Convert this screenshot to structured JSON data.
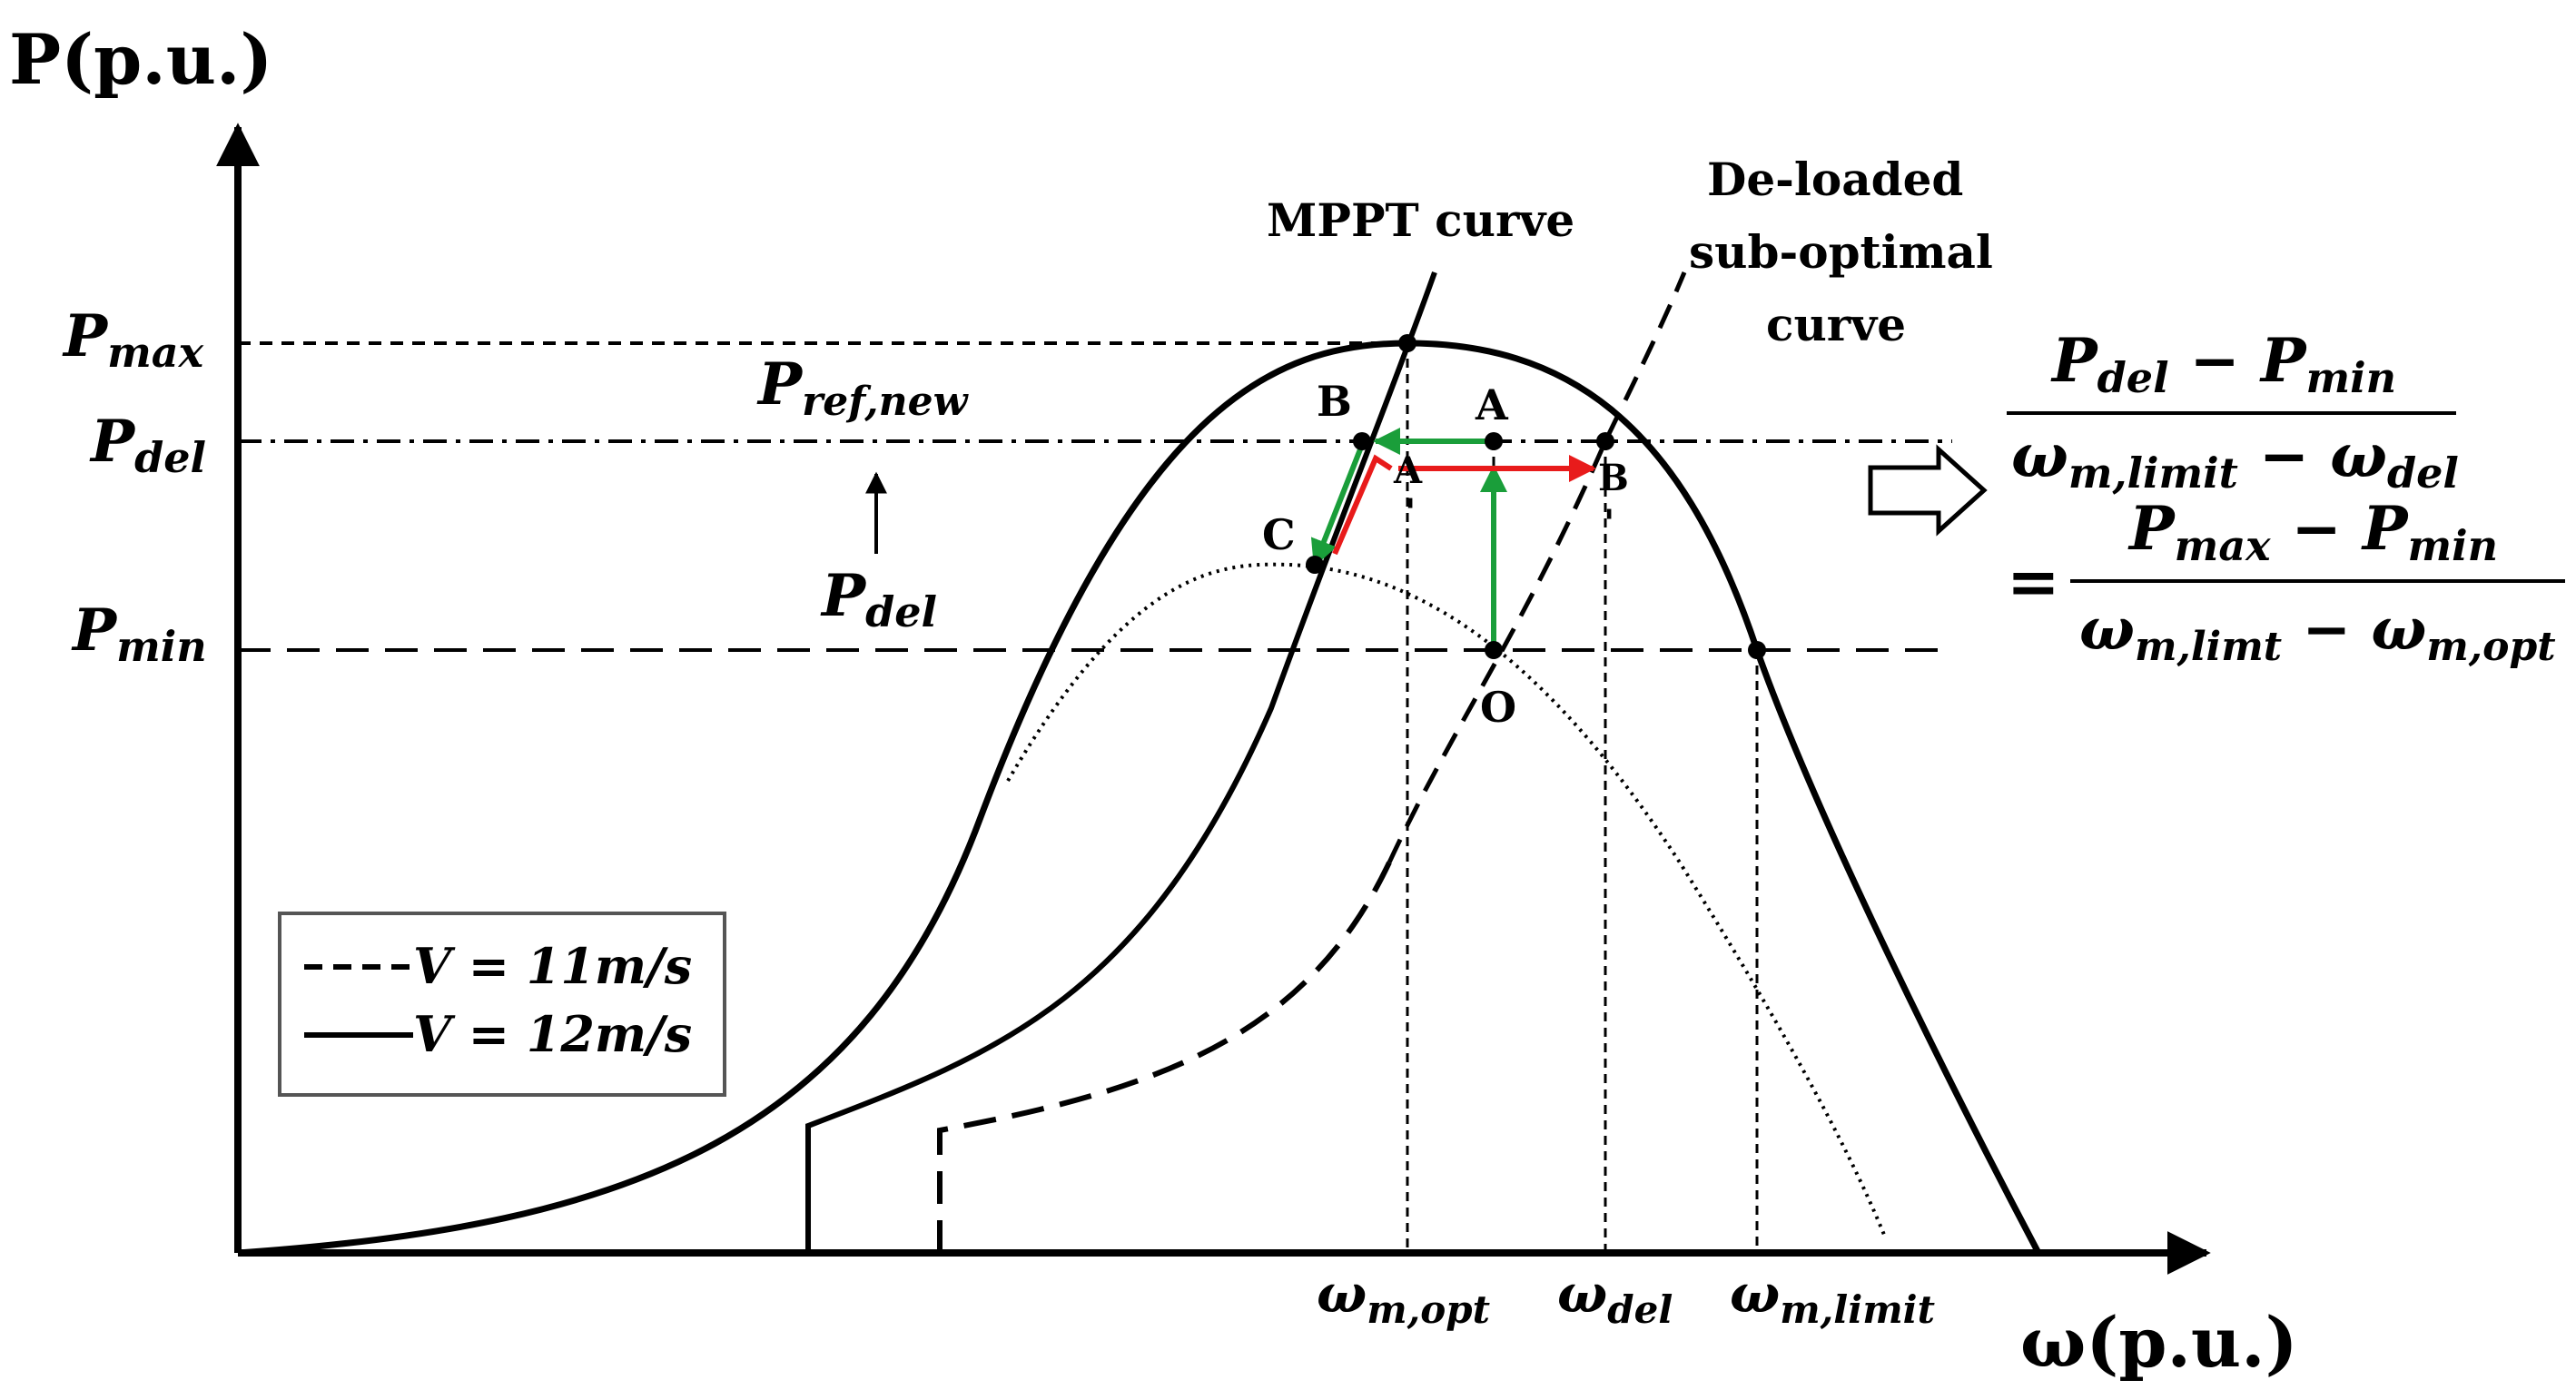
{
  "axes": {
    "y_label": "P(p.u.)",
    "x_label": "ω(p.u.)"
  },
  "y_ticks": {
    "pmax_main": "P",
    "pmax_sub": "max",
    "pdel_main": "P",
    "pdel_sub": "del",
    "pmin_main": "P",
    "pmin_sub": "min"
  },
  "x_ticks": {
    "opt_main": "ω",
    "opt_sub": "m,opt",
    "del_main": "ω",
    "del_sub": "del",
    "limit_main": "ω",
    "limit_sub": "m,limit"
  },
  "annotations": {
    "pref_main": "P",
    "pref_sub": "ref,new",
    "pdel_arrow_main": "P",
    "pdel_arrow_sub": "del",
    "mppt_curve": "MPPT curve",
    "deloaded_line1": "De-loaded",
    "deloaded_line2": "sub-optimal",
    "deloaded_line3": "curve"
  },
  "points": {
    "A": "A",
    "B": "B",
    "C": "C",
    "O": "O",
    "A_prime": "A",
    "B_prime": "B",
    "A_tick": "'",
    "B_tick": "'"
  },
  "legend": {
    "dashed_label": "V = 11m/s",
    "solid_label": "V = 12m/s"
  },
  "equation": {
    "num1_a": "P",
    "num1_a_sub": "del",
    "num1_minus": " − ",
    "num1_b": "P",
    "num1_b_sub": "min",
    "den1_a": "ω",
    "den1_a_sub": "m,limit",
    "den1_minus": " − ",
    "den1_b": "ω",
    "den1_b_sub": "del",
    "equals": "=",
    "num2_a": "P",
    "num2_a_sub": "max",
    "num2_minus": " − ",
    "num2_b": "P",
    "num2_b_sub": "min",
    "den2_a": "ω",
    "den2_a_sub": "m,limt",
    "den2_minus": " − ",
    "den2_b": "ω",
    "den2_b_sub": "m,opt"
  },
  "colors": {
    "green": "#1a9e3a",
    "red": "#e81b1b",
    "black": "#000000"
  }
}
